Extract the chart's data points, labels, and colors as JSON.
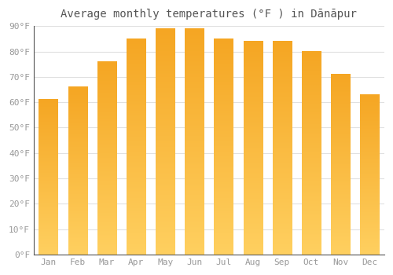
{
  "title": "Average monthly temperatures (°F ) in Dānāpur",
  "months": [
    "Jan",
    "Feb",
    "Mar",
    "Apr",
    "May",
    "Jun",
    "Jul",
    "Aug",
    "Sep",
    "Oct",
    "Nov",
    "Dec"
  ],
  "values": [
    61,
    66,
    76,
    85,
    89,
    89,
    85,
    84,
    84,
    80,
    71,
    63
  ],
  "color_bottom": "#FFD060",
  "color_top": "#F5A623",
  "ylim": [
    0,
    90
  ],
  "yticks": [
    0,
    10,
    20,
    30,
    40,
    50,
    60,
    70,
    80,
    90
  ],
  "ytick_labels": [
    "0°F",
    "10°F",
    "20°F",
    "30°F",
    "40°F",
    "50°F",
    "60°F",
    "70°F",
    "80°F",
    "90°F"
  ],
  "title_fontsize": 10,
  "tick_fontsize": 8,
  "background_color": "#ffffff",
  "grid_color": "#e0e0e0",
  "bar_width": 0.65
}
